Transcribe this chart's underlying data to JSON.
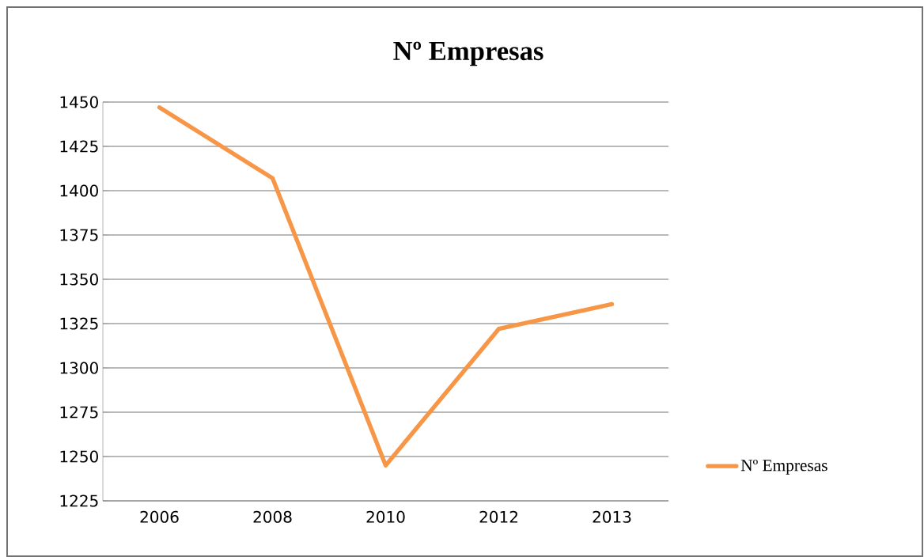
{
  "chart_data": {
    "type": "line",
    "title": "Nº Empresas",
    "categories": [
      "2006",
      "2008",
      "2010",
      "2012",
      "2013"
    ],
    "series": [
      {
        "name": "Nº Empresas",
        "color": "#f79646",
        "values": [
          1447,
          1407,
          1245,
          1322,
          1336
        ]
      }
    ],
    "ylim": [
      1225,
      1450
    ],
    "yticks": [
      1225,
      1250,
      1275,
      1300,
      1325,
      1350,
      1375,
      1400,
      1425,
      1450
    ],
    "grid": "y",
    "legend": "right",
    "marker": "none",
    "line_style": "solid"
  }
}
